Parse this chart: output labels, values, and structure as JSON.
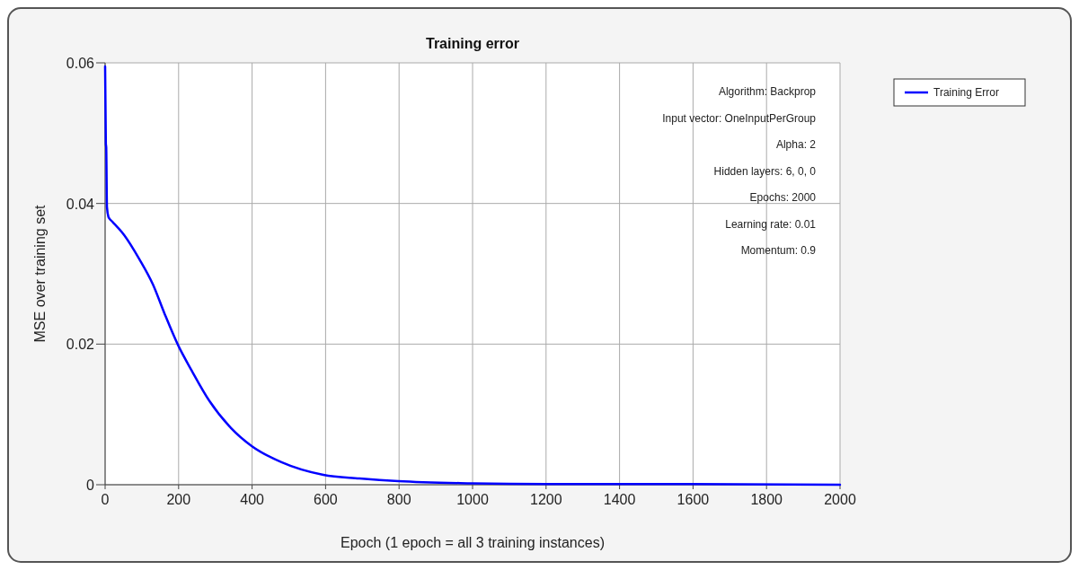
{
  "chart_data": {
    "type": "line",
    "title": "Training error",
    "xlabel": "Epoch (1 epoch = all 3 training instances)",
    "ylabel": "MSE over training set",
    "xlim": [
      0,
      2000
    ],
    "xticks": [
      0,
      200,
      400,
      600,
      800,
      1000,
      1200,
      1400,
      1600,
      1800,
      2000
    ],
    "ylim": [
      0,
      0.06
    ],
    "yticks": [
      0,
      0.02,
      0.04,
      0.06
    ],
    "grid": true,
    "legend": "top right",
    "line_style": "solid",
    "annotations": [
      "Algorithm: Backprop",
      "Input vector: OneInputPerGroup",
      "Alpha: 2",
      "Hidden layers: 6, 0, 0",
      "Epochs: 2000",
      "Learning rate: 0.01",
      "Momentum: 0.9"
    ],
    "series": [
      {
        "name": "Training Error",
        "color": "#0000ff",
        "x": [
          0,
          2,
          3,
          5,
          9,
          11,
          20,
          52,
          93,
          130,
          162,
          199,
          236,
          284,
          342,
          399,
          480,
          594,
          692,
          798,
          1000,
          1200,
          1500,
          2000
        ],
        "values": [
          0.0595,
          0.0485,
          0.048,
          0.0395,
          0.0381,
          0.0379,
          0.0374,
          0.0355,
          0.0321,
          0.0285,
          0.0243,
          0.0198,
          0.0162,
          0.0119,
          0.0081,
          0.0055,
          0.0032,
          0.0014,
          0.0009,
          0.0005,
          0.0002,
          0.0001,
          0.0001,
          0.0
        ]
      }
    ]
  }
}
